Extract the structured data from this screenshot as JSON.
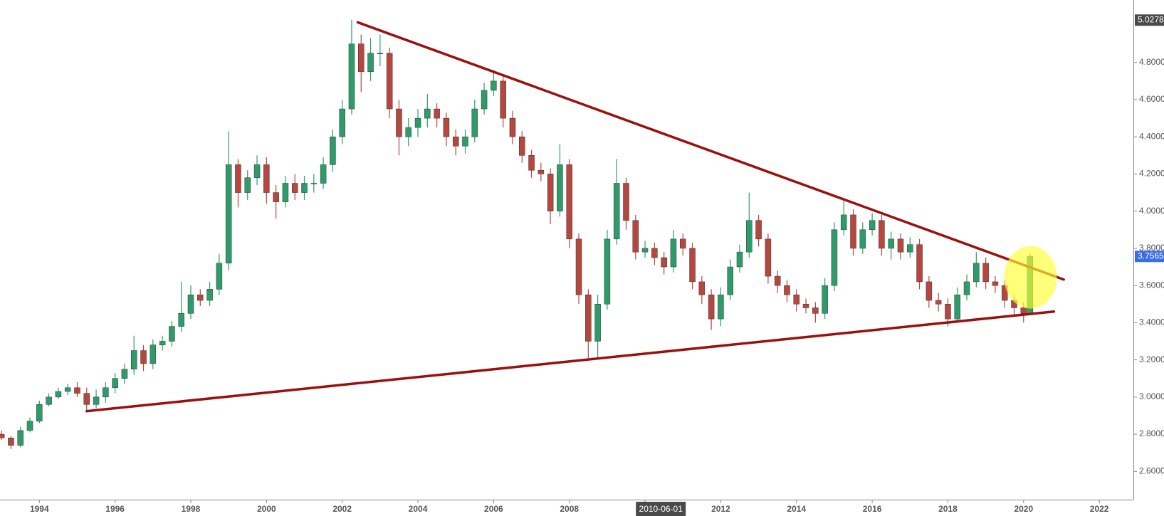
{
  "chart_data": {
    "type": "candlestick",
    "up_color": "#2e9c6a",
    "down_color": "#b5473f",
    "xlim": [
      1992.96,
      2022.9
    ],
    "ylim": [
      2.448,
      5.136
    ],
    "xticks": [
      1994,
      1996,
      1998,
      2000,
      2002,
      2004,
      2006,
      2008,
      2010,
      2012,
      2014,
      2016,
      2018,
      2020,
      2022
    ],
    "yticks": [
      {
        "value": 2.6,
        "label": "2.6000"
      },
      {
        "value": 2.8,
        "label": "2.8000"
      },
      {
        "value": 3.0,
        "label": "3.0000"
      },
      {
        "value": 3.2,
        "label": "3.2000"
      },
      {
        "value": 3.4,
        "label": "3.4000"
      },
      {
        "value": 3.6,
        "label": "3.6000"
      },
      {
        "value": 3.8,
        "label": "3.8000"
      },
      {
        "value": 4.0,
        "label": "4.0000"
      },
      {
        "value": 4.2,
        "label": "4.2000"
      },
      {
        "value": 4.4,
        "label": "4.4000"
      },
      {
        "value": 4.6,
        "label": "4.6000"
      },
      {
        "value": 4.8,
        "label": "4.8000"
      }
    ],
    "x": [
      1993.0,
      1993.25,
      1993.5,
      1993.75,
      1994.0,
      1994.25,
      1994.5,
      1994.75,
      1995.0,
      1995.25,
      1995.5,
      1995.75,
      1996.0,
      1996.25,
      1996.5,
      1996.75,
      1997.0,
      1997.25,
      1997.5,
      1997.75,
      1998.0,
      1998.25,
      1998.5,
      1998.75,
      1999.0,
      1999.25,
      1999.5,
      1999.75,
      2000.0,
      2000.25,
      2000.5,
      2000.75,
      2001.0,
      2001.25,
      2001.5,
      2001.75,
      2002.0,
      2002.25,
      2002.5,
      2002.75,
      2003.0,
      2003.25,
      2003.5,
      2003.75,
      2004.0,
      2004.25,
      2004.5,
      2004.75,
      2005.0,
      2005.25,
      2005.5,
      2005.75,
      2006.0,
      2006.25,
      2006.5,
      2006.75,
      2007.0,
      2007.25,
      2007.5,
      2007.75,
      2008.0,
      2008.25,
      2008.5,
      2008.75,
      2009.0,
      2009.25,
      2009.5,
      2009.75,
      2010.0,
      2010.25,
      2010.5,
      2010.75,
      2011.0,
      2011.25,
      2011.5,
      2011.75,
      2012.0,
      2012.25,
      2012.5,
      2012.75,
      2013.0,
      2013.25,
      2013.5,
      2013.75,
      2014.0,
      2014.25,
      2014.5,
      2014.75,
      2015.0,
      2015.25,
      2015.5,
      2015.75,
      2016.0,
      2016.25,
      2016.5,
      2016.75,
      2017.0,
      2017.25,
      2017.5,
      2017.75,
      2018.0,
      2018.25,
      2018.5,
      2018.75,
      2019.0,
      2019.25,
      2019.5,
      2019.75,
      2020.0,
      2020.17
    ],
    "open": [
      2.8,
      2.78,
      2.74,
      2.82,
      2.87,
      2.96,
      3.0,
      3.03,
      3.05,
      3.02,
      2.96,
      3.0,
      3.05,
      3.1,
      3.15,
      3.25,
      3.18,
      3.28,
      3.3,
      3.38,
      3.45,
      3.55,
      3.52,
      3.58,
      3.72,
      4.25,
      4.1,
      4.18,
      4.25,
      4.1,
      4.05,
      4.15,
      4.1,
      4.15,
      4.15,
      4.25,
      4.4,
      4.55,
      4.9,
      4.75,
      4.85,
      4.85,
      4.55,
      4.4,
      4.45,
      4.5,
      4.55,
      4.5,
      4.4,
      4.35,
      4.4,
      4.55,
      4.65,
      4.7,
      4.5,
      4.4,
      4.3,
      4.22,
      4.2,
      4.0,
      4.25,
      3.85,
      3.55,
      3.3,
      3.5,
      3.85,
      4.15,
      3.95,
      3.78,
      3.8,
      3.75,
      3.7,
      3.85,
      3.8,
      3.62,
      3.55,
      3.42,
      3.55,
      3.7,
      3.78,
      3.95,
      3.85,
      3.65,
      3.6,
      3.55,
      3.5,
      3.48,
      3.45,
      3.6,
      3.9,
      3.98,
      3.8,
      3.9,
      3.95,
      3.8,
      3.85,
      3.78,
      3.82,
      3.62,
      3.52,
      3.5,
      3.42,
      3.55,
      3.62,
      3.72,
      3.62,
      3.6,
      3.52,
      3.48,
      3.45
    ],
    "high": [
      2.82,
      2.79,
      2.84,
      2.89,
      2.98,
      3.02,
      3.05,
      3.07,
      3.08,
      3.05,
      3.04,
      3.08,
      3.13,
      3.18,
      3.33,
      3.28,
      3.31,
      3.33,
      3.41,
      3.62,
      3.6,
      3.58,
      3.62,
      3.77,
      4.43,
      4.28,
      4.22,
      4.3,
      4.29,
      4.14,
      4.19,
      4.2,
      4.19,
      4.2,
      4.29,
      4.44,
      4.6,
      5.03,
      4.95,
      4.93,
      4.95,
      4.88,
      4.6,
      4.5,
      4.55,
      4.63,
      4.58,
      4.53,
      4.44,
      4.44,
      4.6,
      4.69,
      4.76,
      4.73,
      4.54,
      4.43,
      4.33,
      4.26,
      4.23,
      4.36,
      4.28,
      3.88,
      3.58,
      3.55,
      3.9,
      4.28,
      4.18,
      3.98,
      3.84,
      3.83,
      3.78,
      3.9,
      3.88,
      3.83,
      3.65,
      3.58,
      3.59,
      3.74,
      3.82,
      4.1,
      3.98,
      3.88,
      3.68,
      3.63,
      3.58,
      3.53,
      3.51,
      3.64,
      3.94,
      4.06,
      4.01,
      3.94,
      3.99,
      3.98,
      3.89,
      3.88,
      3.86,
      3.85,
      3.65,
      3.56,
      3.53,
      3.59,
      3.66,
      3.78,
      3.75,
      3.65,
      3.63,
      3.55,
      3.51,
      3.77
    ],
    "low": [
      2.77,
      2.72,
      2.73,
      2.81,
      2.86,
      2.95,
      2.99,
      3.01,
      3.0,
      2.92,
      2.94,
      2.97,
      3.02,
      3.07,
      3.12,
      3.14,
      3.15,
      3.25,
      3.27,
      3.35,
      3.42,
      3.49,
      3.49,
      3.55,
      3.68,
      4.02,
      4.06,
      4.14,
      4.04,
      3.96,
      4.02,
      4.06,
      4.06,
      4.1,
      4.12,
      4.21,
      4.36,
      4.52,
      4.64,
      4.7,
      4.78,
      4.5,
      4.3,
      4.35,
      4.4,
      4.45,
      4.45,
      4.35,
      4.3,
      4.31,
      4.37,
      4.52,
      4.62,
      4.45,
      4.36,
      4.26,
      4.18,
      4.16,
      3.93,
      3.97,
      3.8,
      3.5,
      3.21,
      3.21,
      3.47,
      3.82,
      3.9,
      3.74,
      3.75,
      3.71,
      3.66,
      3.67,
      3.76,
      3.58,
      3.5,
      3.36,
      3.38,
      3.52,
      3.67,
      3.75,
      3.81,
      3.61,
      3.56,
      3.51,
      3.46,
      3.45,
      3.4,
      3.42,
      3.57,
      3.87,
      3.76,
      3.77,
      3.87,
      3.76,
      3.74,
      3.74,
      3.75,
      3.58,
      3.48,
      3.46,
      3.38,
      3.4,
      3.52,
      3.59,
      3.58,
      3.56,
      3.48,
      3.44,
      3.4,
      3.44
    ],
    "close": [
      2.78,
      2.74,
      2.82,
      2.87,
      2.96,
      3.0,
      3.03,
      3.05,
      3.02,
      2.96,
      3.0,
      3.05,
      3.1,
      3.15,
      3.25,
      3.18,
      3.28,
      3.3,
      3.38,
      3.45,
      3.55,
      3.52,
      3.58,
      3.72,
      4.25,
      4.1,
      4.18,
      4.25,
      4.1,
      4.05,
      4.15,
      4.1,
      4.15,
      4.15,
      4.25,
      4.4,
      4.55,
      4.9,
      4.75,
      4.85,
      4.85,
      4.55,
      4.4,
      4.45,
      4.5,
      4.55,
      4.5,
      4.4,
      4.35,
      4.4,
      4.55,
      4.65,
      4.7,
      4.5,
      4.4,
      4.3,
      4.22,
      4.2,
      4.0,
      4.25,
      3.85,
      3.55,
      3.3,
      3.5,
      3.85,
      4.15,
      3.95,
      3.78,
      3.8,
      3.75,
      3.7,
      3.85,
      3.8,
      3.62,
      3.55,
      3.42,
      3.55,
      3.7,
      3.78,
      3.95,
      3.85,
      3.65,
      3.6,
      3.55,
      3.5,
      3.48,
      3.45,
      3.6,
      3.9,
      3.98,
      3.8,
      3.9,
      3.95,
      3.8,
      3.85,
      3.78,
      3.82,
      3.62,
      3.52,
      3.5,
      3.42,
      3.55,
      3.62,
      3.72,
      3.62,
      3.6,
      3.52,
      3.48,
      3.45,
      3.7565
    ],
    "trendlines": [
      {
        "x": [
          2002.41,
          2021.06
        ],
        "y": [
          5.016,
          3.632
        ],
        "color": "#9b0f0f"
      },
      {
        "x": [
          1995.25,
          2020.8
        ],
        "y": [
          2.924,
          3.46
        ],
        "color": "#9b0f0f"
      }
    ],
    "highlight": {
      "x": 2020.18,
      "y": 3.644,
      "color": "#ffff33"
    },
    "price_labels": [
      {
        "value": 5.0278,
        "color": "#4a4a4a"
      },
      {
        "value": 3.7565,
        "color": "#3b6fe0"
      }
    ],
    "crosshair_date": "2010-06-01"
  }
}
